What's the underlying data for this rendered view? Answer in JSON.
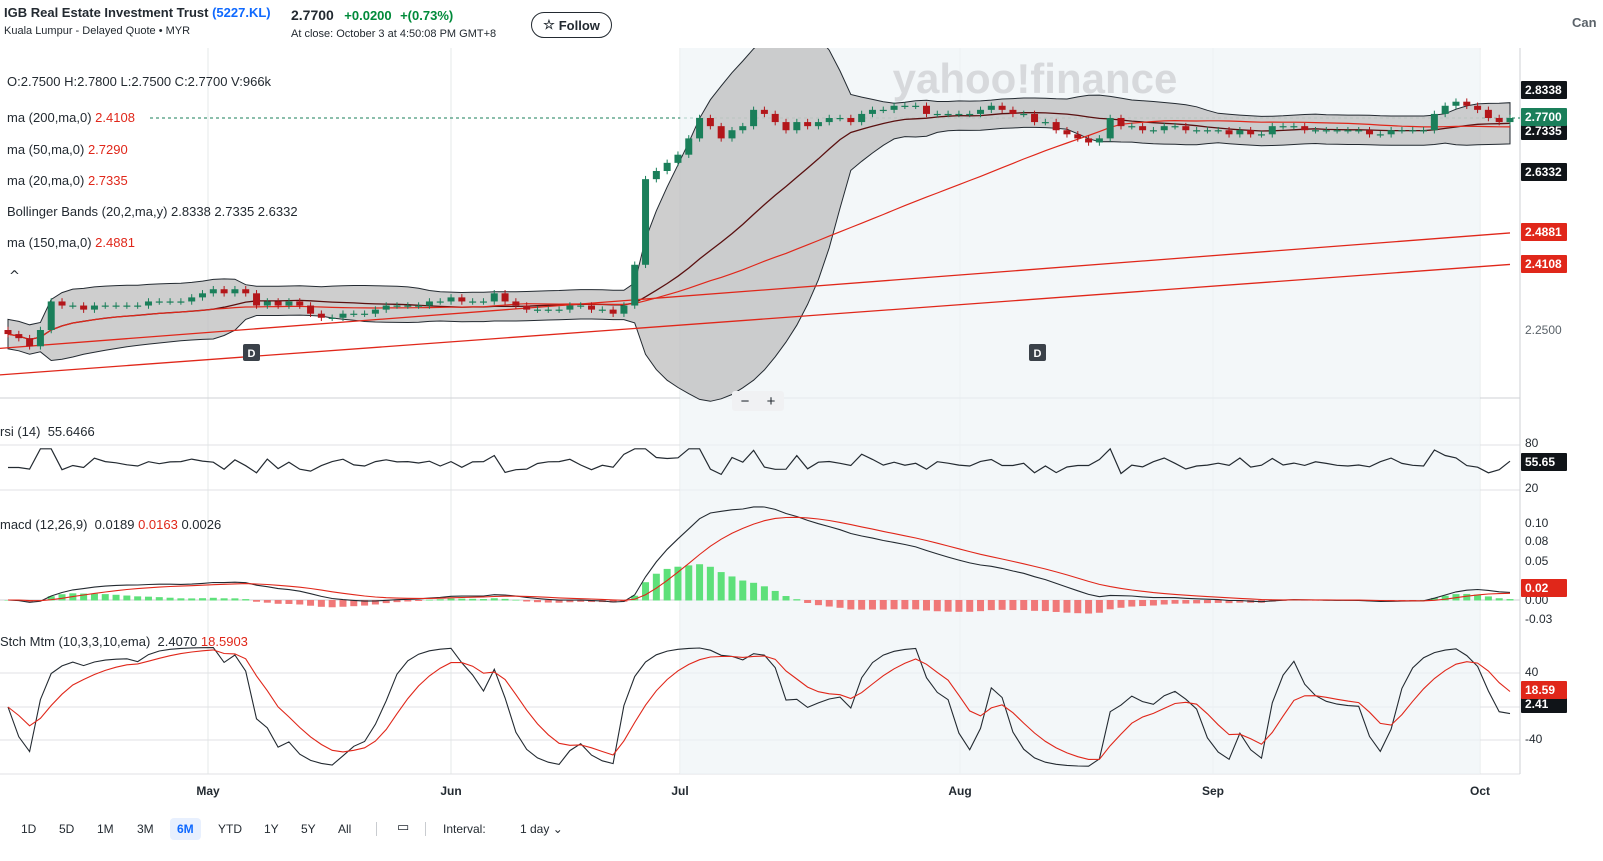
{
  "header": {
    "name": "IGB Real Estate Investment Trust",
    "symbol": "(5227.KL)",
    "subtitle": "Kuala Lumpur - Delayed Quote • MYR",
    "price": "2.7700",
    "change": "+0.0200",
    "change_pct": "+(0.73%)",
    "close_note": "At close: October 3 at 4:50:08 PM GMT+8",
    "follow_label": "Follow",
    "follow_icon": "star-icon",
    "cut_label": "Can"
  },
  "colors": {
    "up": "#1a7f5a",
    "down": "#b3161a",
    "ma": "#e0271a",
    "band": "#bdbdbd",
    "macd_up": "#5ee07a",
    "macd_dn": "#f07878",
    "accent": "#0f69ff"
  },
  "legend": {
    "ohlc": "O:2.7500   H:2.7800   L:2.7500   C:2.7700   V:966k",
    "ma200_label": "ma (200,ma,0)",
    "ma200_val": "2.4108",
    "ma50_label": "ma (50,ma,0)",
    "ma50_val": "2.7290",
    "ma20_label": "ma (20,ma,0)",
    "ma20_val": "2.7335",
    "bb_label": "Bollinger Bands (20,2,ma,y)",
    "bb_vals": "2.8338  2.7335  2.6332",
    "ma150_label": "ma (150,ma,0)",
    "ma150_val": "2.4881",
    "rsi_label": "rsi (14)",
    "rsi_val": "55.6466",
    "macd_label": "macd (12,26,9)",
    "macd_v1": "0.0189",
    "macd_v2": "0.0163",
    "macd_v3": "0.0026",
    "stch_label": "Stch Mtm (10,3,3,10,ema)",
    "stch_v1": "2.4070",
    "stch_v2": "18.5903"
  },
  "watermark": "yahoo!finance",
  "dividend_marker": "D",
  "zoom": {
    "minus": "−",
    "plus": "+"
  },
  "right_labels": {
    "bb_upper": "2.8338",
    "last": "2.7700",
    "ma20": "2.7335",
    "bb_lower": "2.6332",
    "ma150": "2.4881",
    "ma200": "2.4108",
    "tick_2250": "2.2500",
    "rsi_80": "80",
    "rsi_val": "55.65",
    "rsi_20": "20",
    "macd_010": "0.10",
    "macd_008": "0.08",
    "macd_005": "0.05",
    "macd_val": "0.02",
    "macd_000": "0.00",
    "macd_m003": "-0.03",
    "stch_40": "40",
    "stch_val": "18.59",
    "stch_val2": "2.41",
    "stch_m40": "-40"
  },
  "chart_data": {
    "type": "candlestick",
    "period": "6M daily",
    "x_labels": [
      "May",
      "Jun",
      "Jul",
      "Aug",
      "Sep",
      "Oct"
    ],
    "y_ticks": [
      2.25,
      2.4108,
      2.4881,
      2.6332,
      2.7335,
      2.77,
      2.8338
    ],
    "last_close": 2.77,
    "indicators": {
      "ma200": 2.4108,
      "ma150": 2.4881,
      "ma50": 2.729,
      "ma20": 2.7335,
      "bollinger": {
        "upper": 2.8338,
        "mid": 2.7335,
        "lower": 2.6332
      },
      "rsi14": 55.6466,
      "macd": {
        "macd": 0.0189,
        "signal": 0.0163,
        "hist": 0.0026
      },
      "stoch_mtm": {
        "k": 2.407,
        "d": 18.5903
      }
    },
    "close_series": [
      2.24,
      2.23,
      2.21,
      2.25,
      2.32,
      2.31,
      2.31,
      2.3,
      2.31,
      2.31,
      2.31,
      2.31,
      2.31,
      2.32,
      2.32,
      2.32,
      2.32,
      2.33,
      2.34,
      2.35,
      2.34,
      2.35,
      2.34,
      2.31,
      2.32,
      2.31,
      2.32,
      2.31,
      2.29,
      2.28,
      2.28,
      2.29,
      2.29,
      2.29,
      2.3,
      2.31,
      2.31,
      2.31,
      2.31,
      2.32,
      2.32,
      2.33,
      2.32,
      2.32,
      2.32,
      2.34,
      2.32,
      2.31,
      2.3,
      2.3,
      2.3,
      2.3,
      2.31,
      2.31,
      2.3,
      2.3,
      2.29,
      2.31,
      2.41,
      2.62,
      2.64,
      2.66,
      2.68,
      2.72,
      2.77,
      2.75,
      2.72,
      2.74,
      2.75,
      2.79,
      2.78,
      2.76,
      2.74,
      2.76,
      2.75,
      2.76,
      2.77,
      2.77,
      2.76,
      2.78,
      2.79,
      2.79,
      2.8,
      2.8,
      2.8,
      2.78,
      2.78,
      2.78,
      2.78,
      2.78,
      2.79,
      2.8,
      2.79,
      2.78,
      2.78,
      2.76,
      2.76,
      2.74,
      2.73,
      2.72,
      2.71,
      2.72,
      2.77,
      2.75,
      2.75,
      2.74,
      2.74,
      2.75,
      2.75,
      2.74,
      2.74,
      2.74,
      2.74,
      2.73,
      2.74,
      2.73,
      2.73,
      2.75,
      2.75,
      2.75,
      2.74,
      2.74,
      2.74,
      2.74,
      2.74,
      2.74,
      2.73,
      2.73,
      2.74,
      2.74,
      2.74,
      2.74,
      2.78,
      2.8,
      2.81,
      2.8,
      2.79,
      2.77,
      2.76,
      2.77
    ]
  },
  "toolbar": {
    "ranges": [
      "1D",
      "5D",
      "1M",
      "3M",
      "6M",
      "YTD",
      "1Y",
      "5Y",
      "All"
    ],
    "active": "6M",
    "calendar_icon": "calendar-icon",
    "interval_label": "Interval:",
    "interval_value": "1 day ⌄"
  }
}
